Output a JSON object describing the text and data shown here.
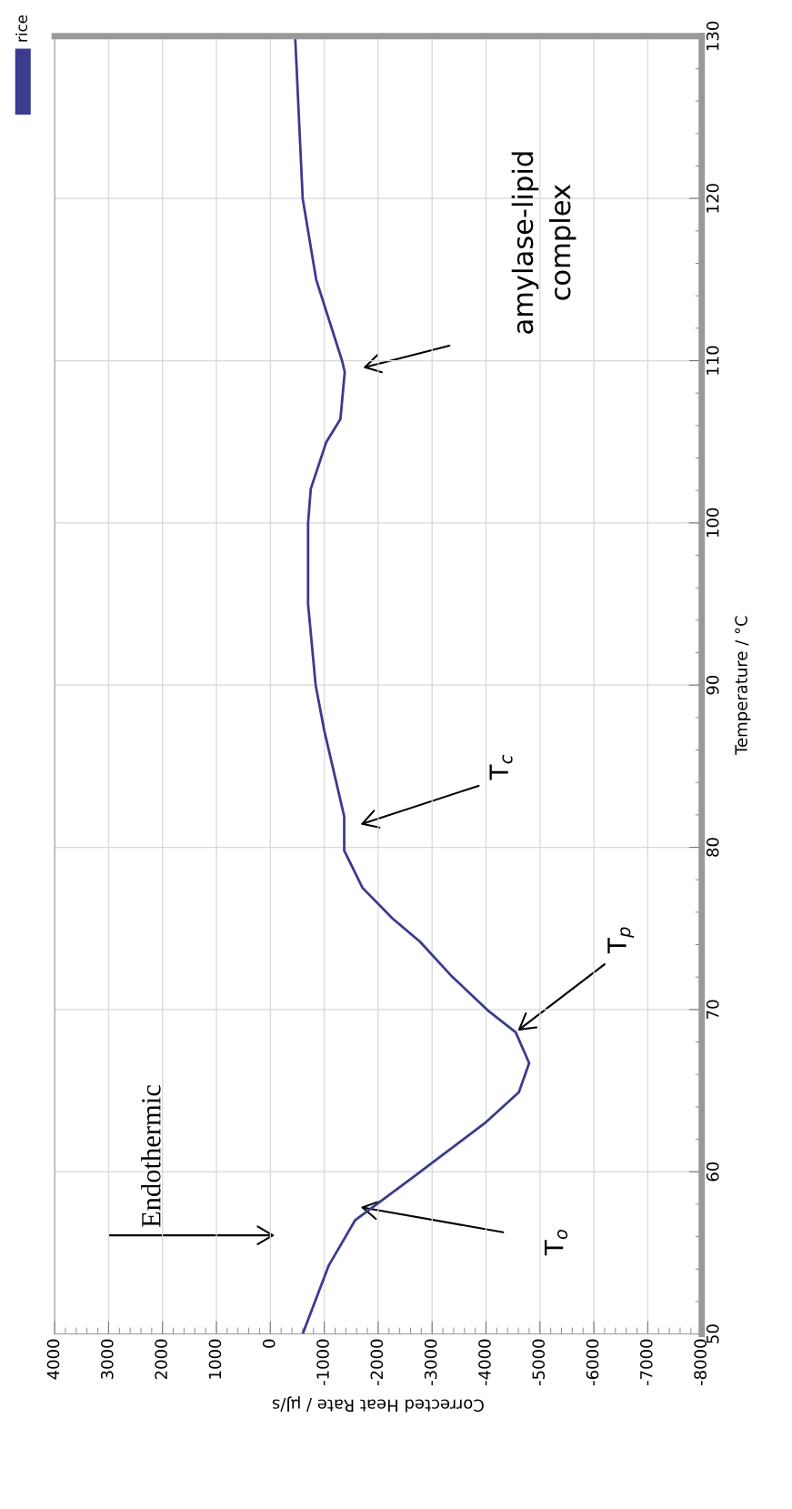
{
  "chart_data": {
    "type": "line",
    "xlabel": "Corrected Heat Rate / µJ/s",
    "ylabel": "Temperature / °C",
    "series": [
      {
        "name": "rice",
        "color": "#3b3b8f",
        "x": [
          -600,
          -1080,
          -1570,
          -2700,
          -3980,
          -4610,
          -4800,
          -4550,
          -4050,
          -3350,
          -2770,
          -2270,
          -1710,
          -1370,
          -1370,
          -1000,
          -840,
          -700,
          -700,
          -750,
          -1040,
          -1300,
          -1380,
          -1330,
          -850,
          -600,
          -460
        ],
        "values": [
          50,
          54.2,
          57,
          59.8,
          63,
          64.9,
          66.7,
          68.6,
          69.9,
          72.1,
          74.2,
          75.6,
          77.5,
          79.8,
          81.9,
          87.2,
          90,
          95,
          100,
          102.1,
          105,
          106.4,
          109.3,
          110,
          115,
          120,
          130
        ]
      }
    ],
    "ylim": [
      50,
      130
    ],
    "yticks": [
      50,
      60,
      70,
      80,
      90,
      100,
      110,
      120,
      130
    ],
    "xlim": [
      4000,
      -8000
    ],
    "xticks": [
      4000,
      3000,
      2000,
      1000,
      0,
      -1000,
      -2000,
      -3000,
      -4000,
      -5000,
      -6000,
      -7000,
      -8000
    ],
    "grid": true,
    "legend": "top",
    "line_style": "solid",
    "marker": "none",
    "annotations": [
      "Endothermic",
      "T$_{o}$",
      {
        "text": "T$_{p}$",
        "x": -4550,
        "y": 68.6
      },
      "T$_{c}$",
      "amylase-lipid\ncomplex"
    ]
  }
}
